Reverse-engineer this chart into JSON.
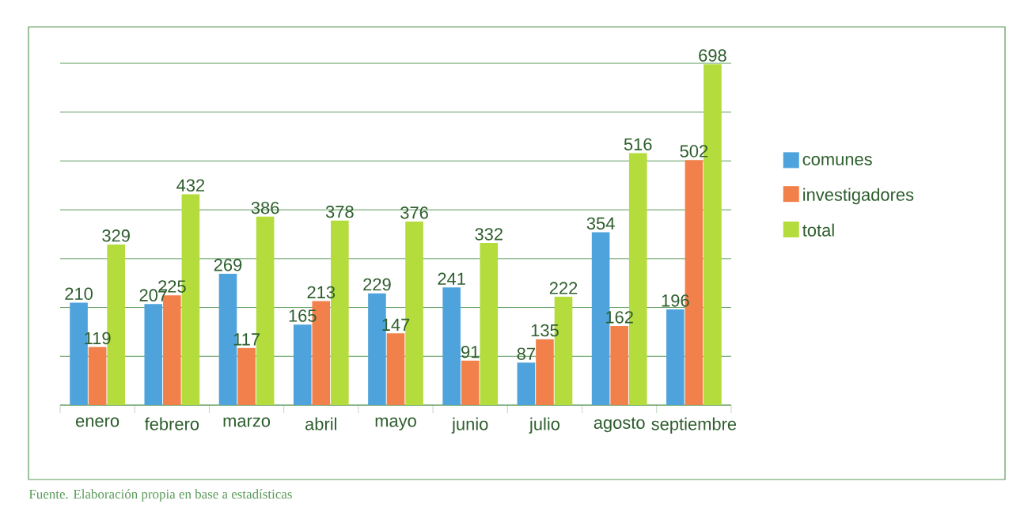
{
  "chart_data": {
    "type": "bar",
    "categories": [
      "enero",
      "febrero",
      "marzo",
      "abril",
      "mayo",
      "junio",
      "julio",
      "agosto",
      "septiembre"
    ],
    "series": [
      {
        "name": "comunes",
        "color": "#4fa3dc",
        "values": [
          210,
          207,
          269,
          165,
          229,
          241,
          87,
          354,
          196
        ]
      },
      {
        "name": "investigadores",
        "color": "#f2804a",
        "values": [
          119,
          225,
          117,
          213,
          147,
          91,
          135,
          162,
          502
        ]
      },
      {
        "name": "total",
        "color": "#b3dc3c",
        "values": [
          329,
          432,
          386,
          378,
          376,
          332,
          222,
          516,
          698
        ]
      }
    ],
    "ylim": [
      0,
      700
    ],
    "yticks": [
      {
        "value": 0,
        "label": null
      },
      {
        "value": 100,
        "label": null
      },
      {
        "value": 200,
        "label": null
      },
      {
        "value": 300,
        "label": null
      },
      {
        "value": 400,
        "label": null
      },
      {
        "value": 500,
        "label": null
      },
      {
        "value": 600,
        "label": null
      },
      {
        "value": 700,
        "label": null
      }
    ],
    "tick_labels": "x",
    "grid": "y",
    "legend": "right",
    "data_labels": true,
    "annotations": [
      "Fuente. Elaboración propia en base a estadísticas"
    ]
  }
}
